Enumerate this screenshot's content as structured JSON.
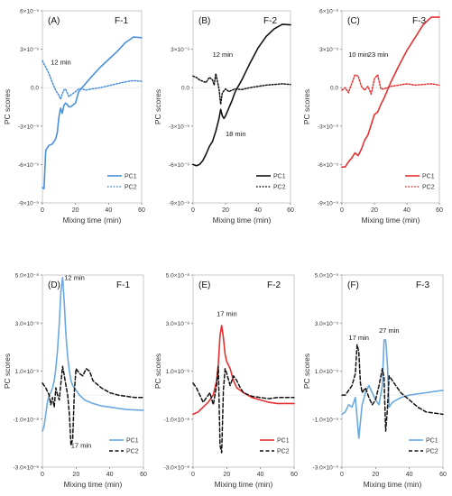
{
  "colors": {
    "blue": "#4a90d9",
    "black": "#111111",
    "red": "#e53030",
    "lightblue": "#6aa9e0"
  },
  "chart_data": [
    {
      "type": "line",
      "panel": "(A)",
      "title": "F-1",
      "ylabel": "PC scores",
      "xlabel": "Mixing time (min)",
      "xlim": [
        0,
        60
      ],
      "ylim": [
        -9e-09,
        6e-09
      ],
      "xticks": [
        0,
        20,
        40,
        60
      ],
      "yticks": [
        {
          "v": 6e-09,
          "label": "6×10⁻⁹"
        },
        {
          "v": 3e-09,
          "label": "3×10⁻⁹"
        },
        {
          "v": 0,
          "label": "0.0"
        },
        {
          "v": -3e-09,
          "label": "-3×10⁻⁹"
        },
        {
          "v": -6e-09,
          "label": "-6×10⁻⁹"
        },
        {
          "v": -9e-09,
          "label": "-9×10⁻⁹"
        }
      ],
      "annotations": [
        {
          "text": "12 min",
          "x": 5,
          "y": 1.8e-09
        }
      ],
      "legend_position": "bottom-right",
      "series": [
        {
          "name": "PC1",
          "color": "blue",
          "dash": "solid",
          "x": [
            0,
            1,
            2,
            4,
            6,
            8,
            9,
            10,
            11,
            12,
            13,
            14,
            15,
            16,
            17,
            18,
            20,
            22,
            24,
            26,
            30,
            35,
            40,
            45,
            50,
            55,
            60
          ],
          "y": [
            -7.8e-09,
            -7.9e-09,
            -4.9e-09,
            -4.5e-09,
            -4.4e-09,
            -4e-09,
            -3.5e-09,
            -2.3e-09,
            -1.6e-09,
            -2e-09,
            -1.4e-09,
            -1.2e-09,
            -1.3e-09,
            -1.5e-09,
            -1.5e-09,
            -1.4e-09,
            -1.2e-09,
            -3e-10,
            0,
            3e-10,
            9e-10,
            1.6e-09,
            2.2e-09,
            2.8e-09,
            3.5e-09,
            3.95e-09,
            3.9e-09
          ]
        },
        {
          "name": "PC2",
          "color": "blue",
          "dash": "dotted",
          "x": [
            0,
            2,
            4,
            6,
            8,
            10,
            11,
            12,
            13,
            14,
            16,
            18,
            20,
            22,
            24,
            26,
            30,
            35,
            40,
            45,
            50,
            55,
            60
          ],
          "y": [
            2.1e-09,
            1.6e-09,
            1.1e-09,
            4e-10,
            -2e-10,
            -6e-10,
            -9e-10,
            -5e-10,
            -2e-10,
            -1e-10,
            -7e-10,
            -5e-10,
            -3e-10,
            -1e-10,
            -1e-10,
            -2e-10,
            -1e-10,
            0,
            1.5e-10,
            3e-10,
            4.5e-10,
            5.5e-10,
            5e-10
          ]
        }
      ]
    },
    {
      "type": "line",
      "panel": "(B)",
      "title": "F-2",
      "ylabel": "PC scores",
      "xlabel": "Mixing time (min)",
      "xlim": [
        0,
        60
      ],
      "ylim": [
        -9e-09,
        6e-09
      ],
      "xticks": [
        0,
        20,
        40,
        60
      ],
      "yticks": [
        {
          "v": 3e-09,
          "label": "3×10⁻⁹"
        },
        {
          "v": 0,
          "label": "0.0"
        },
        {
          "v": -3e-09,
          "label": "-3×10⁻⁹"
        },
        {
          "v": -6e-09,
          "label": "-6×10⁻⁹"
        },
        {
          "v": -9e-09,
          "label": "-9×10⁻⁹"
        }
      ],
      "annotations": [
        {
          "text": "12 min",
          "x": 12,
          "y": 2.4e-09
        },
        {
          "text": "18 min",
          "x": 20,
          "y": -3.8e-09
        }
      ],
      "legend_position": "bottom-right",
      "series": [
        {
          "name": "PC1",
          "color": "black",
          "dash": "solid",
          "x": [
            0,
            2,
            4,
            6,
            8,
            10,
            12,
            14,
            16,
            17,
            18,
            19,
            20,
            22,
            24,
            26,
            30,
            35,
            40,
            45,
            50,
            55,
            60
          ],
          "y": [
            -6e-09,
            -6.1e-09,
            -6e-09,
            -5.7e-09,
            -5.2e-09,
            -4.6e-09,
            -4.2e-09,
            -3.4e-09,
            -2.4e-09,
            -1.7e-09,
            -2.2e-09,
            -2.4e-09,
            -2.2e-09,
            -1.6e-09,
            -1e-09,
            -3e-10,
            6e-10,
            1.9e-09,
            3.1e-09,
            4e-09,
            4.6e-09,
            4.95e-09,
            4.9e-09
          ]
        },
        {
          "name": "PC2",
          "color": "black",
          "dash": "dotted",
          "x": [
            0,
            2,
            4,
            6,
            8,
            10,
            12,
            13,
            14,
            15,
            16,
            17,
            18,
            20,
            22,
            24,
            26,
            30,
            35,
            40,
            45,
            50,
            55,
            60
          ],
          "y": [
            9e-10,
            8e-10,
            6e-10,
            5e-10,
            4e-10,
            8e-10,
            6e-10,
            2e-10,
            1.1e-09,
            5e-10,
            -1e-10,
            -1.3e-09,
            -4e-10,
            -1e-10,
            -3e-10,
            -2e-10,
            -1e-10,
            -1.5e-10,
            0,
            1e-10,
            2e-10,
            2.5e-10,
            3e-10,
            2.5e-10
          ]
        }
      ]
    },
    {
      "type": "line",
      "panel": "(C)",
      "title": "F-3",
      "ylabel": "PC scores",
      "xlabel": "Mixing time (min)",
      "xlim": [
        0,
        60
      ],
      "ylim": [
        -9e-09,
        6e-09
      ],
      "xticks": [
        0,
        20,
        40,
        60
      ],
      "yticks": [
        {
          "v": 6e-09,
          "label": "6×10⁻⁹"
        },
        {
          "v": 3e-09,
          "label": "3×10⁻⁹"
        },
        {
          "v": 0,
          "label": "0.0"
        },
        {
          "v": -3e-09,
          "label": "-3×10⁻⁹"
        },
        {
          "v": -6e-09,
          "label": "-6×10⁻⁹"
        },
        {
          "v": -9e-09,
          "label": "-9×10⁻⁹"
        }
      ],
      "annotations": [
        {
          "text": "10 min",
          "x": 4,
          "y": 2.4e-09
        },
        {
          "text": "23 min",
          "x": 16,
          "y": 2.4e-09
        }
      ],
      "legend_position": "bottom-right",
      "series": [
        {
          "name": "PC1",
          "color": "red",
          "dash": "solid",
          "x": [
            0,
            2,
            4,
            6,
            8,
            10,
            12,
            14,
            16,
            18,
            20,
            22,
            24,
            26,
            28,
            30,
            35,
            40,
            45,
            50,
            55,
            60
          ],
          "y": [
            -6.2e-09,
            -6.2e-09,
            -5.8e-09,
            -5.5e-09,
            -5.1e-09,
            -5.3e-09,
            -4.8e-09,
            -4.1e-09,
            -3.7e-09,
            -2.9e-09,
            -2.1e-09,
            -1.9e-09,
            -1.3e-09,
            -8e-10,
            -2e-10,
            4e-10,
            1.7e-09,
            2.9e-09,
            3.9e-09,
            4.9e-09,
            5.5e-09,
            5.5e-09
          ]
        },
        {
          "name": "PC2",
          "color": "red",
          "dash": "dotted",
          "x": [
            0,
            2,
            4,
            6,
            8,
            10,
            12,
            14,
            16,
            18,
            20,
            22,
            24,
            26,
            28,
            30,
            35,
            40,
            45,
            50,
            55,
            60
          ],
          "y": [
            -2e-10,
            0,
            -4e-10,
            3e-10,
            1e-09,
            9e-10,
            1e-10,
            -2e-10,
            1e-10,
            -5e-10,
            7e-10,
            1e-09,
            -1e-10,
            -1e-10,
            0,
            1e-10,
            2e-10,
            3e-10,
            2e-10,
            2.5e-10,
            3e-10,
            2e-10
          ]
        }
      ]
    },
    {
      "type": "line",
      "panel": "(D)",
      "title": "F-1",
      "ylabel": "PC scores",
      "xlabel": "Mixing time (min)",
      "xlim": [
        0,
        60
      ],
      "ylim": [
        -3e-08,
        5e-08
      ],
      "xticks": [
        0,
        20,
        40,
        60
      ],
      "yticks": [
        {
          "v": 5e-08,
          "label": "5.0×10⁻⁸"
        },
        {
          "v": 3e-08,
          "label": "3.0×10⁻⁸"
        },
        {
          "v": 1e-08,
          "label": "1.0×10⁻⁸"
        },
        {
          "v": -1e-08,
          "label": "-1.0×10⁻⁸"
        },
        {
          "v": -3e-08,
          "label": "-3.0×10⁻⁸"
        }
      ],
      "annotations": [
        {
          "text": "12 min",
          "x": 13,
          "y": 4.8e-08
        },
        {
          "text": "17 min",
          "x": 17,
          "y": -2.2e-08
        }
      ],
      "legend_position": "bottom-right",
      "series": [
        {
          "name": "PC1",
          "color": "lightblue",
          "dash": "solid",
          "x": [
            0,
            1,
            2,
            3,
            4,
            5,
            6,
            7,
            8,
            9,
            10,
            11,
            12,
            13,
            14,
            15,
            16,
            17,
            18,
            20,
            22,
            25,
            30,
            35,
            40,
            45,
            50,
            55,
            60
          ],
          "y": [
            -1.5e-08,
            -1.3e-08,
            -8e-09,
            -3e-09,
            0,
            1e-09,
            3e-09,
            6e-09,
            1.1e-08,
            1.9e-08,
            3e-08,
            4.3e-08,
            4.9e-08,
            3.8e-08,
            2.5e-08,
            1.6e-08,
            1e-08,
            6e-09,
            4e-09,
            2e-09,
            0,
            -2e-09,
            -3.5e-09,
            -4.5e-09,
            -5e-09,
            -5.5e-09,
            -6e-09,
            -6.2e-09,
            -6.3e-09
          ]
        },
        {
          "name": "PC2",
          "color": "black",
          "dash": "dashed",
          "x": [
            0,
            2,
            4,
            5,
            6,
            7,
            8,
            9,
            10,
            11,
            12,
            13,
            14,
            15,
            16,
            17,
            18,
            19,
            20,
            22,
            24,
            26,
            28,
            30,
            35,
            40,
            45,
            50,
            55,
            60
          ],
          "y": [
            5e-09,
            3e-09,
            0,
            -4e-09,
            -1e-09,
            -5e-09,
            3e-09,
            0,
            -2e-09,
            5e-09,
            1.2e-08,
            8e-09,
            4e-09,
            0,
            -8e-09,
            -2.1e-08,
            -1.8e-08,
            2e-09,
            1.1e-08,
            9e-09,
            8e-09,
            1.1e-08,
            1e-08,
            6e-09,
            3e-09,
            1e-09,
            0,
            -5e-10,
            -1e-09,
            -1e-09
          ]
        }
      ]
    },
    {
      "type": "line",
      "panel": "(E)",
      "title": "F-2",
      "ylabel": "PC scores",
      "xlabel": "Mixing time (min)",
      "xlim": [
        0,
        60
      ],
      "ylim": [
        -3e-08,
        5e-08
      ],
      "xticks": [
        0,
        20,
        40,
        60
      ],
      "yticks": [
        {
          "v": 5e-08,
          "label": "5.0×10⁻⁸"
        },
        {
          "v": 3e-08,
          "label": "3.0×10⁻⁸"
        },
        {
          "v": 1e-08,
          "label": "1.0×10⁻⁸"
        },
        {
          "v": -1e-08,
          "label": "-1.0×10⁻⁸"
        },
        {
          "v": -3e-08,
          "label": "-3.0×10⁻⁸"
        }
      ],
      "annotations": [
        {
          "text": "17 min",
          "x": 14,
          "y": 3.3e-08
        }
      ],
      "legend_position": "bottom-right",
      "series": [
        {
          "name": "PC1",
          "color": "red",
          "dash": "solid",
          "x": [
            0,
            3,
            6,
            9,
            12,
            14,
            15,
            16,
            17,
            18,
            19,
            20,
            22,
            24,
            26,
            30,
            35,
            40,
            45,
            50,
            55,
            60
          ],
          "y": [
            -8e-09,
            -7e-09,
            -5e-09,
            -3e-09,
            0,
            6e-09,
            1.3e-08,
            2.5e-08,
            2.9e-08,
            2.4e-08,
            1.7e-08,
            1.4e-08,
            1.1e-08,
            6e-09,
            3e-09,
            1e-09,
            -1e-09,
            -2e-09,
            -3e-09,
            -3.5e-09,
            -3.5e-09,
            -3.5e-09
          ]
        },
        {
          "name": "PC2",
          "color": "black",
          "dash": "dashed",
          "x": [
            0,
            2,
            4,
            6,
            8,
            10,
            12,
            14,
            15,
            16,
            17,
            18,
            19,
            20,
            22,
            24,
            26,
            28,
            30,
            35,
            40,
            45,
            50,
            55,
            60
          ],
          "y": [
            5e-09,
            3e-09,
            0,
            -3e-09,
            -1e-09,
            1e-09,
            -4e-09,
            4e-09,
            1.2e-08,
            -2.1e-08,
            -2.4e-08,
            2e-09,
            1.1e-08,
            9e-09,
            4e-09,
            8e-09,
            6e-09,
            3e-09,
            1e-09,
            -5e-10,
            -1e-09,
            -1.5e-09,
            -1e-09,
            -1e-09,
            -1e-09
          ]
        }
      ]
    },
    {
      "type": "line",
      "panel": "(F)",
      "title": "F-3",
      "ylabel": "PC scores",
      "xlabel": "Mixing time (min)",
      "xlim": [
        0,
        60
      ],
      "ylim": [
        -3e-09,
        5e-09
      ],
      "xticks": [
        0,
        20,
        40,
        60
      ],
      "yticks": [
        {
          "v": 5e-09,
          "label": "5.0×10⁻⁹"
        },
        {
          "v": 3e-09,
          "label": "3.0×10⁻⁹"
        },
        {
          "v": 1e-09,
          "label": "1.0×10⁻⁹"
        },
        {
          "v": -1e-09,
          "label": "-1.0×10⁻⁹"
        },
        {
          "v": -3e-09,
          "label": "-3.0×10⁻⁹"
        }
      ],
      "annotations": [
        {
          "text": "17 min",
          "x": 4,
          "y": 2.3e-09
        },
        {
          "text": "27 min",
          "x": 22,
          "y": 2.6e-09
        }
      ],
      "legend_position": "bottom-right",
      "series": [
        {
          "name": "PC1",
          "color": "lightblue",
          "dash": "solid",
          "x": [
            0,
            2,
            4,
            6,
            8,
            10,
            11,
            12,
            14,
            16,
            18,
            20,
            22,
            24,
            25,
            26,
            27,
            28,
            30,
            35,
            40,
            45,
            50,
            55,
            60
          ],
          "y": [
            -8e-10,
            -7e-10,
            -4e-10,
            -5e-10,
            -1e-10,
            -1.8e-09,
            -1.1e-09,
            -4e-10,
            1e-10,
            4e-10,
            1e-10,
            -2e-10,
            -4e-10,
            4e-10,
            2.3e-09,
            2.3e-09,
            1.3e-09,
            -5e-10,
            -3e-10,
            -1e-10,
            0,
            5e-11,
            1e-10,
            1.5e-10,
            2e-10
          ]
        },
        {
          "name": "PC2",
          "color": "black",
          "dash": "dashed",
          "x": [
            0,
            2,
            4,
            6,
            8,
            9,
            10,
            11,
            12,
            14,
            16,
            18,
            20,
            22,
            24,
            25,
            26,
            27,
            28,
            30,
            32,
            35,
            40,
            45,
            50,
            55,
            60
          ],
          "y": [
            0,
            0,
            2e-10,
            4e-10,
            9e-10,
            2.1e-09,
            1.8e-09,
            5e-10,
            1e-10,
            3e-10,
            -1e-10,
            -4e-10,
            -2e-10,
            4e-10,
            1.1e-09,
            7e-10,
            -1.5e-09,
            -6e-10,
            8e-10,
            6e-10,
            4e-10,
            1e-10,
            -2e-10,
            -5e-10,
            -7e-10,
            -7.5e-10,
            -8e-10
          ]
        }
      ]
    }
  ]
}
